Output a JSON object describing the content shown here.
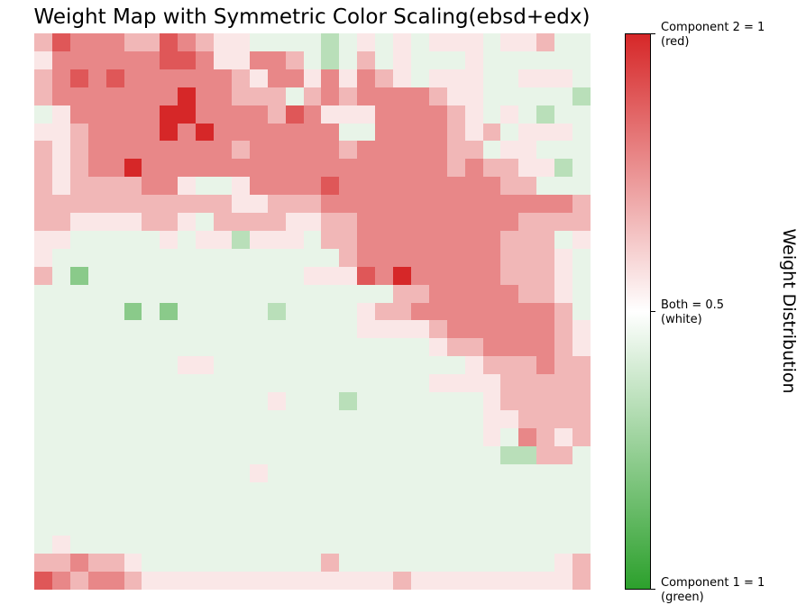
{
  "chart_data": {
    "type": "heatmap",
    "title": "Weight Map with Symmetric Color Scaling(ebsd+edx)",
    "grid_size": [
      31,
      31
    ],
    "colormap": {
      "low_color": "#2ca02c",
      "mid_color": "#ffffff",
      "high_color": "#d62728",
      "range": [
        0,
        1
      ]
    },
    "colorbar": {
      "label": "Weight Distribution",
      "ticks": [
        {
          "value": 1.0,
          "label_line1": "Component 2 = 1",
          "label_line2": "(red)"
        },
        {
          "value": 0.5,
          "label_line1": "Both = 0.5",
          "label_line2": "(white)"
        },
        {
          "value": 0.0,
          "label_line1": "Component 1 = 1",
          "label_line2": "(green)"
        }
      ]
    },
    "values": [
      "6877766876554444345454555455644",
      "5777777887557764346454445444444",
      "6787877777765775757654555445554",
      "6777777797766646767777655444443",
      "4577777997777687555777765454344",
      "5567777979777777744777765645554",
      "6567777777767777767777766455444",
      "6567797777777777777777767665534",
      "6566667754457777877777777766444",
      "6666666666655666777777777777776",
      "6655556654666655667777777776666",
      "5544444545535554667777777766645",
      "5444444444444444467777777766654",
      "6424444444444445558797777766654",
      "4444444444444444444466777776654",
      "4444424244444344445667777777764",
      "4444444444444444445555677777765",
      "4444444444444444444444566777765",
      "4444444455444444444444445666766",
      "4444444444444444444444555566666",
      "4444444444444544434444444566666",
      "4444444444444444444444444556666",
      "4444444444444444444444444547656",
      "4444444444444444444444444433664",
      "4444444444445444444444444444444",
      "4444444444444444444444444444444",
      "4444444444444444444444444444444",
      "4444444444444444444444444444444",
      "4544444444444444444444444444444",
      "6676654444444444644444444444456",
      "8767765555555555555565555555556"
    ]
  }
}
